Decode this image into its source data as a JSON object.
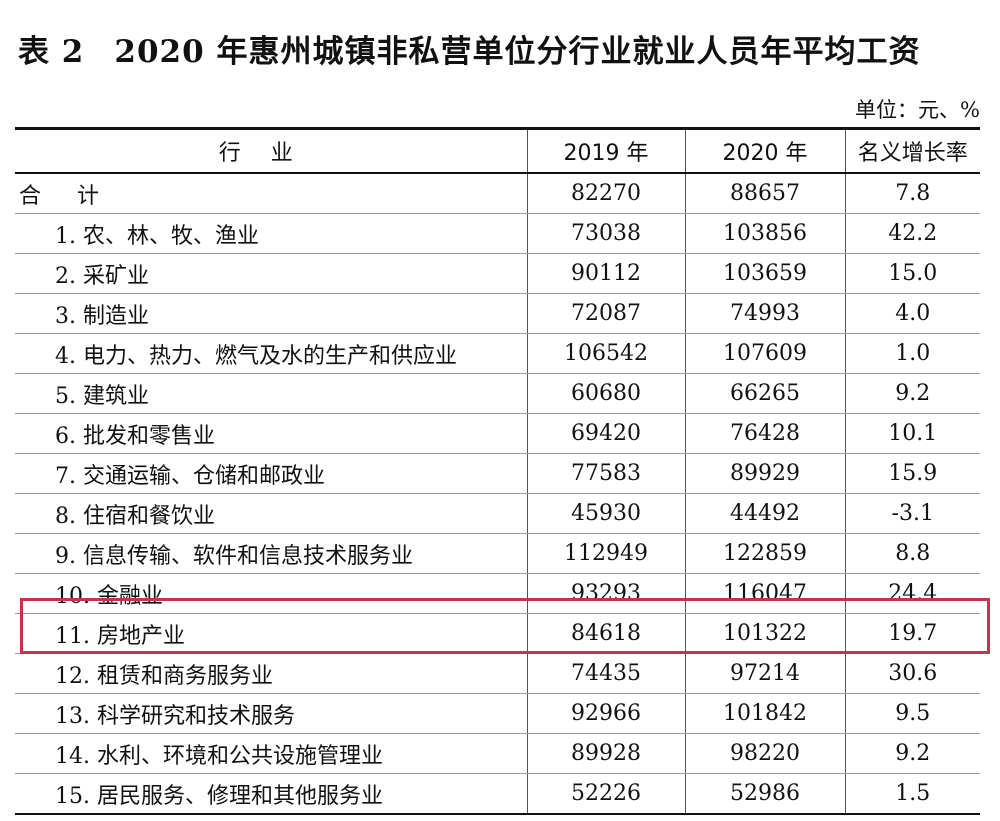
{
  "title": {
    "number": "表 2",
    "text": "2020 年惠州城镇非私营单位分行业就业人员年平均工资"
  },
  "unit": "单位：元、%",
  "table": {
    "headers": [
      "行业",
      "2019 年",
      "2020 年",
      "名义增长率"
    ],
    "rows": [
      {
        "industry": "合计",
        "y2019": "82270",
        "y2020": "88657",
        "growth": "7.8"
      },
      {
        "industry": "1. 农、林、牧、渔业",
        "y2019": "73038",
        "y2020": "103856",
        "growth": "42.2"
      },
      {
        "industry": "2. 采矿业",
        "y2019": "90112",
        "y2020": "103659",
        "growth": "15.0"
      },
      {
        "industry": "3. 制造业",
        "y2019": "72087",
        "y2020": "74993",
        "growth": "4.0"
      },
      {
        "industry": "4. 电力、热力、燃气及水的生产和供应业",
        "y2019": "106542",
        "y2020": "107609",
        "growth": "1.0"
      },
      {
        "industry": "5. 建筑业",
        "y2019": "60680",
        "y2020": "66265",
        "growth": "9.2"
      },
      {
        "industry": "6. 批发和零售业",
        "y2019": "69420",
        "y2020": "76428",
        "growth": "10.1"
      },
      {
        "industry": "7. 交通运输、仓储和邮政业",
        "y2019": "77583",
        "y2020": "89929",
        "growth": "15.9"
      },
      {
        "industry": "8. 住宿和餐饮业",
        "y2019": "45930",
        "y2020": "44492",
        "growth": "-3.1"
      },
      {
        "industry": "9. 信息传输、软件和信息技术服务业",
        "y2019": "112949",
        "y2020": "122859",
        "growth": "8.8"
      },
      {
        "industry": "10. 金融业",
        "y2019": "93293",
        "y2020": "116047",
        "growth": "24.4"
      },
      {
        "industry": "11. 房地产业",
        "y2019": "84618",
        "y2020": "101322",
        "growth": "19.7"
      },
      {
        "industry": "12. 租赁和商务服务业",
        "y2019": "74435",
        "y2020": "97214",
        "growth": "30.6"
      },
      {
        "industry": "13. 科学研究和技术服务",
        "y2019": "92966",
        "y2020": "101842",
        "growth": "9.5"
      },
      {
        "industry": "14. 水利、环境和公共设施管理业",
        "y2019": "89928",
        "y2020": "98220",
        "growth": "9.2"
      },
      {
        "industry": "15. 居民服务、修理和其他服务业",
        "y2019": "52226",
        "y2020": "52986",
        "growth": "1.5"
      }
    ]
  },
  "colors": {
    "highlight": "#c8314f"
  }
}
